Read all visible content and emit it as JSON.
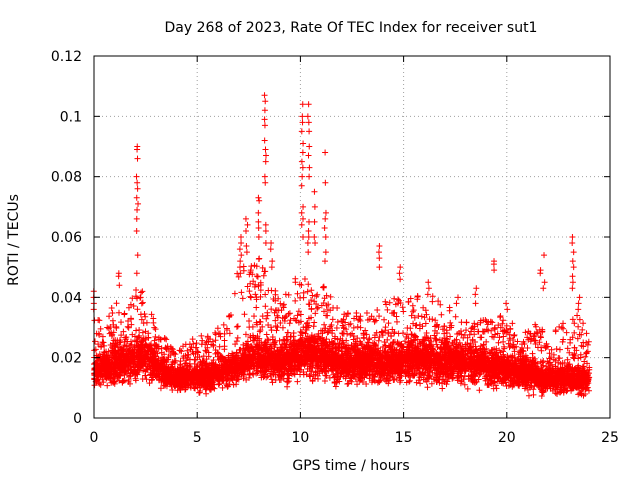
{
  "chart_data": {
    "type": "scatter",
    "title": "Day 268 of 2023, Rate Of TEC Index for receiver sut1",
    "xlabel": "GPS time / hours",
    "ylabel": "ROTI / TECUs",
    "xlim": [
      0,
      25
    ],
    "ylim": [
      0,
      0.12
    ],
    "x_ticks": [
      0,
      5,
      10,
      15,
      20,
      25
    ],
    "y_ticks": [
      0,
      0.02,
      0.04,
      0.06,
      0.08,
      0.1,
      0.12
    ],
    "x_tick_labels": [
      "0",
      "5",
      "10",
      "15",
      "20",
      "25"
    ],
    "y_tick_labels": [
      "0",
      "0.02",
      "0.04",
      "0.06",
      "0.08",
      "0.1",
      "0.12"
    ],
    "grid": true,
    "marker": "+",
    "marker_color": "#ff0000",
    "envelope": {
      "x": [
        0,
        0.5,
        1.0,
        1.5,
        2.0,
        2.5,
        3.0,
        3.5,
        4.0,
        4.5,
        5.0,
        5.5,
        6.0,
        6.5,
        7.0,
        7.5,
        8.0,
        8.5,
        9.0,
        9.5,
        10.0,
        10.5,
        11.0,
        11.5,
        12.0,
        12.5,
        13.0,
        13.5,
        14.0,
        14.5,
        15.0,
        15.5,
        16.0,
        16.5,
        17.0,
        17.5,
        18.0,
        18.5,
        19.0,
        19.5,
        20.0,
        20.5,
        21.0,
        21.5,
        22.0,
        22.5,
        23.0,
        23.5,
        24.0
      ],
      "y_low": [
        0.008,
        0.007,
        0.006,
        0.007,
        0.008,
        0.008,
        0.007,
        0.007,
        0.007,
        0.007,
        0.006,
        0.006,
        0.007,
        0.007,
        0.008,
        0.008,
        0.008,
        0.008,
        0.007,
        0.007,
        0.008,
        0.008,
        0.007,
        0.007,
        0.007,
        0.007,
        0.007,
        0.007,
        0.007,
        0.007,
        0.007,
        0.007,
        0.007,
        0.007,
        0.006,
        0.006,
        0.006,
        0.006,
        0.006,
        0.006,
        0.006,
        0.006,
        0.005,
        0.005,
        0.005,
        0.005,
        0.005,
        0.005,
        0.006
      ],
      "y_median": [
        0.014,
        0.016,
        0.016,
        0.017,
        0.019,
        0.02,
        0.016,
        0.014,
        0.012,
        0.013,
        0.013,
        0.013,
        0.014,
        0.015,
        0.016,
        0.018,
        0.019,
        0.018,
        0.017,
        0.018,
        0.02,
        0.02,
        0.019,
        0.018,
        0.017,
        0.017,
        0.017,
        0.017,
        0.017,
        0.017,
        0.018,
        0.018,
        0.018,
        0.018,
        0.017,
        0.017,
        0.017,
        0.017,
        0.016,
        0.016,
        0.015,
        0.015,
        0.014,
        0.013,
        0.012,
        0.012,
        0.012,
        0.012,
        0.012
      ],
      "y_high": [
        0.035,
        0.03,
        0.04,
        0.037,
        0.043,
        0.042,
        0.03,
        0.027,
        0.022,
        0.025,
        0.028,
        0.028,
        0.03,
        0.033,
        0.052,
        0.05,
        0.055,
        0.045,
        0.04,
        0.043,
        0.05,
        0.045,
        0.045,
        0.04,
        0.035,
        0.035,
        0.035,
        0.035,
        0.04,
        0.04,
        0.04,
        0.04,
        0.043,
        0.04,
        0.038,
        0.035,
        0.032,
        0.032,
        0.033,
        0.035,
        0.033,
        0.03,
        0.03,
        0.032,
        0.028,
        0.03,
        0.034,
        0.034,
        0.028
      ]
    },
    "spikes": [
      {
        "x": 2.1,
        "y": [
          0.09,
          0.089,
          0.086,
          0.08,
          0.078,
          0.076,
          0.073,
          0.071,
          0.069,
          0.066,
          0.062,
          0.054,
          0.048
        ]
      },
      {
        "x": 0.0,
        "y": [
          0.042,
          0.04,
          0.038,
          0.036
        ]
      },
      {
        "x": 1.2,
        "y": [
          0.048,
          0.047,
          0.044
        ]
      },
      {
        "x": 7.1,
        "y": [
          0.06,
          0.058,
          0.056,
          0.054,
          0.052,
          0.05,
          0.048
        ]
      },
      {
        "x": 7.4,
        "y": [
          0.066,
          0.064,
          0.062,
          0.057,
          0.055
        ]
      },
      {
        "x": 8.0,
        "y": [
          0.073,
          0.072,
          0.068,
          0.065,
          0.063,
          0.06
        ]
      },
      {
        "x": 8.3,
        "y": [
          0.107,
          0.105,
          0.102,
          0.099,
          0.097,
          0.092,
          0.089,
          0.087,
          0.085,
          0.08,
          0.078,
          0.064,
          0.062,
          0.058
        ]
      },
      {
        "x": 8.6,
        "y": [
          0.058,
          0.056,
          0.052,
          0.05
        ]
      },
      {
        "x": 10.1,
        "y": [
          0.104,
          0.1,
          0.098,
          0.095,
          0.091,
          0.088,
          0.085,
          0.083,
          0.08,
          0.077,
          0.07,
          0.068,
          0.066,
          0.064,
          0.06
        ]
      },
      {
        "x": 10.4,
        "y": [
          0.104,
          0.1,
          0.098,
          0.095,
          0.09,
          0.087,
          0.083,
          0.08,
          0.065,
          0.062,
          0.06,
          0.058,
          0.055
        ]
      },
      {
        "x": 10.7,
        "y": [
          0.075,
          0.07,
          0.065,
          0.06,
          0.058
        ]
      },
      {
        "x": 11.2,
        "y": [
          0.088,
          0.078,
          0.068,
          0.066,
          0.063,
          0.06,
          0.055,
          0.052
        ]
      },
      {
        "x": 13.8,
        "y": [
          0.057,
          0.055,
          0.053,
          0.05
        ]
      },
      {
        "x": 14.8,
        "y": [
          0.05,
          0.048,
          0.046
        ]
      },
      {
        "x": 16.2,
        "y": [
          0.045,
          0.043,
          0.041
        ]
      },
      {
        "x": 17.6,
        "y": [
          0.04,
          0.038
        ]
      },
      {
        "x": 18.5,
        "y": [
          0.043,
          0.041,
          0.038
        ]
      },
      {
        "x": 19.4,
        "y": [
          0.052,
          0.051,
          0.049
        ]
      },
      {
        "x": 20.0,
        "y": [
          0.038,
          0.036
        ]
      },
      {
        "x": 21.6,
        "y": [
          0.049,
          0.048
        ]
      },
      {
        "x": 21.8,
        "y": [
          0.054,
          0.045,
          0.043
        ]
      },
      {
        "x": 23.2,
        "y": [
          0.06,
          0.058,
          0.055,
          0.052,
          0.05,
          0.047,
          0.045,
          0.043
        ]
      },
      {
        "x": 23.5,
        "y": [
          0.04,
          0.038,
          0.036
        ]
      }
    ]
  }
}
